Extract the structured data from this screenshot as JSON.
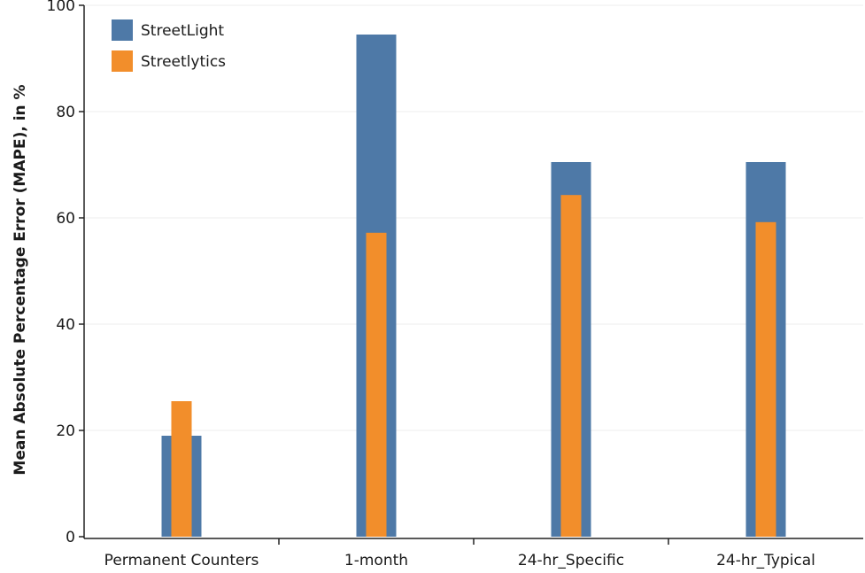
{
  "chart_data": {
    "type": "bar",
    "title": "",
    "xlabel": "",
    "ylabel": "Mean Absolute Percentage Error (MAPE), in %",
    "ylim": [
      0,
      100
    ],
    "yticks": [
      0,
      20,
      40,
      60,
      80,
      100
    ],
    "grid": true,
    "legend_position": "top-left",
    "categories": [
      "Permanent Counters",
      "1-month",
      "24-hr_Specific",
      "24-hr_Typical"
    ],
    "series": [
      {
        "name": "StreetLight",
        "color": "#4e79a7",
        "values": [
          19,
          94.5,
          70.5,
          70.5
        ]
      },
      {
        "name": "Streetlytics",
        "color": "#f28e2b",
        "values": [
          25.5,
          57.2,
          64.3,
          59.2
        ]
      }
    ]
  }
}
